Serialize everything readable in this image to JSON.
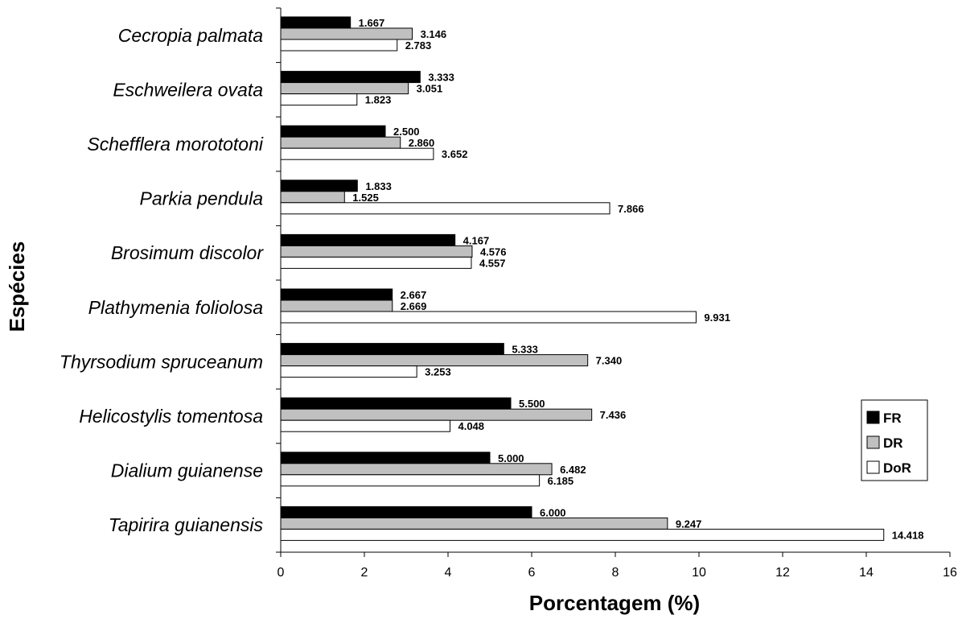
{
  "chart_data": {
    "type": "bar",
    "orientation": "horizontal",
    "xlabel": "Porcentagem (%)",
    "ylabel": "Espécies",
    "xlim": [
      0,
      16
    ],
    "xticks": [
      0,
      2,
      4,
      6,
      8,
      10,
      12,
      14,
      16
    ],
    "grid": false,
    "legend_position": "right",
    "categories": [
      "Cecropia palmata",
      "Eschweilera ovata",
      "Schefflera morototoni",
      "Parkia pendula",
      "Brosimum discolor",
      "Plathymenia foliolosa",
      "Thyrsodium spruceanum",
      "Helicostylis tomentosa",
      "Dialium guianense",
      "Tapirira guianensis"
    ],
    "series": [
      {
        "name": "FR",
        "color": "#000000",
        "values": [
          1.667,
          3.333,
          2.5,
          1.833,
          4.167,
          2.667,
          5.333,
          5.5,
          5.0,
          6.0
        ],
        "labels": [
          "1.667",
          "3.333",
          "2.500",
          "1.833",
          "4.167",
          "2.667",
          "5.333",
          "5.500",
          "5.000",
          "6.000"
        ]
      },
      {
        "name": "DR",
        "color": "#c0c0c0",
        "values": [
          3.146,
          3.051,
          2.86,
          1.525,
          4.576,
          2.669,
          7.34,
          7.436,
          6.482,
          9.247
        ],
        "labels": [
          "3.146",
          "3.051",
          "2.860",
          "1.525",
          "4.576",
          "2.669",
          "7.340",
          "7.436",
          "6.482",
          "9.247"
        ]
      },
      {
        "name": "DoR",
        "color": "#ffffff",
        "values": [
          2.783,
          1.823,
          3.652,
          7.866,
          4.557,
          9.931,
          3.253,
          4.048,
          6.185,
          14.418
        ],
        "labels": [
          "2.783",
          "1.823",
          "3.652",
          "7.866",
          "4.557",
          "9.931",
          "3.253",
          "4.048",
          "6.185",
          "14.418"
        ]
      }
    ]
  }
}
